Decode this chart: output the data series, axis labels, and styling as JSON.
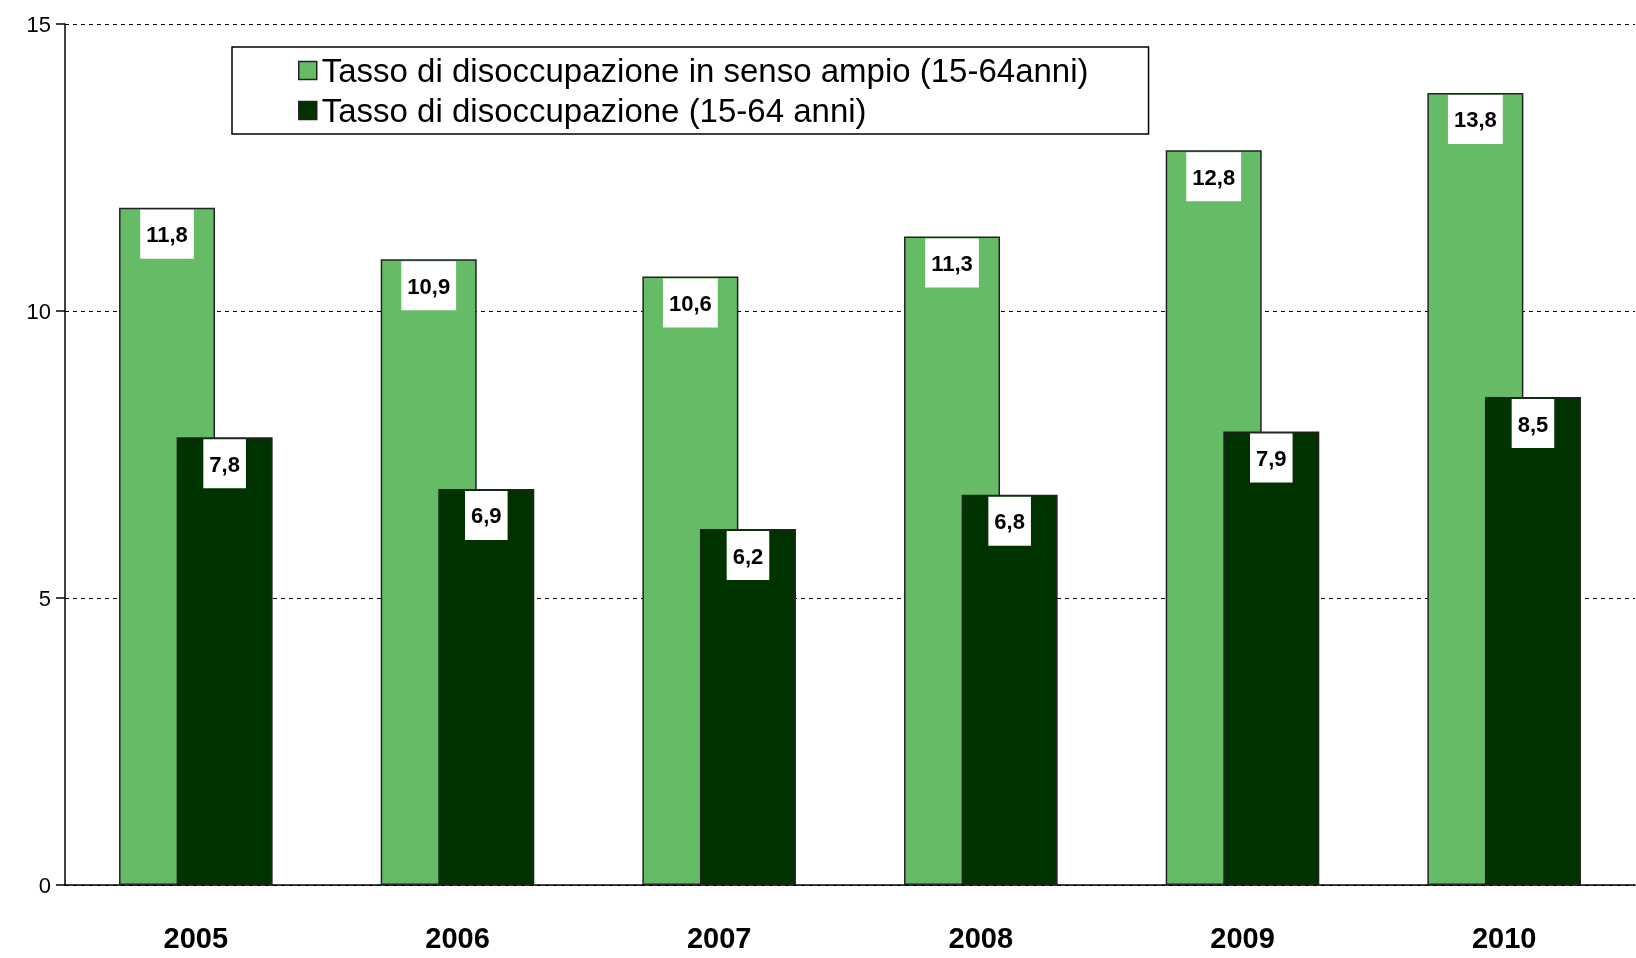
{
  "chart_data": {
    "type": "bar",
    "categories": [
      "2005",
      "2006",
      "2007",
      "2008",
      "2009",
      "2010"
    ],
    "series": [
      {
        "name": "Tasso di disoccupazione in senso ampio (15-64anni)",
        "color": "#66bb66",
        "values": [
          11.8,
          10.9,
          10.6,
          11.3,
          12.8,
          13.8
        ],
        "value_labels": [
          "11,8",
          "10,9",
          "10,6",
          "11,3",
          "12,8",
          "13,8"
        ]
      },
      {
        "name": "Tasso di disoccupazione (15-64 anni)",
        "color": "#003300",
        "values": [
          7.8,
          6.9,
          6.2,
          6.8,
          7.9,
          8.5
        ],
        "value_labels": [
          "7,8",
          "6,9",
          "6,2",
          "6,8",
          "7,9",
          "8,5"
        ]
      }
    ],
    "ylim": [
      0,
      15
    ],
    "yticks": [
      0,
      5,
      10,
      15
    ],
    "grid": "y",
    "legend": "top left"
  }
}
